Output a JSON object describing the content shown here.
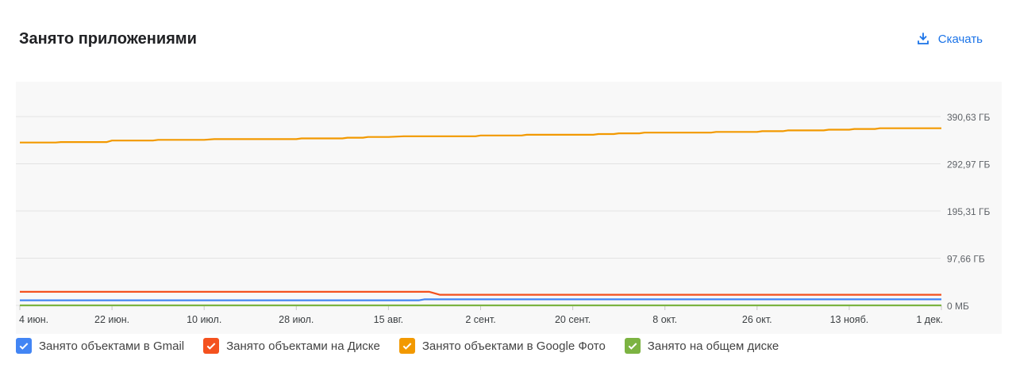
{
  "header": {
    "title": "Занято приложениями",
    "download_label": "Скачать",
    "download_icon": "download-icon"
  },
  "chart_data": {
    "type": "line",
    "title": "",
    "xlabel": "",
    "ylabel": "",
    "x_ticks": [
      "4 июн.",
      "22 июн.",
      "10 июл.",
      "28 июл.",
      "15 авг.",
      "2 сент.",
      "20 сент.",
      "8 окт.",
      "26 окт.",
      "13 нояб.",
      "1 дек."
    ],
    "y_ticks": [
      "390,63 ГБ",
      "292,97 ГБ",
      "195,31 ГБ",
      "97,66 ГБ",
      "0 МБ"
    ],
    "ylim_gb": [
      0,
      390.63
    ],
    "grid": true,
    "legend_position": "bottom",
    "series": [
      {
        "name": "Занято объектами в Gmail",
        "color": "#4285f4",
        "points": [
          [
            "4 июн.",
            10.5
          ],
          [
            "21 авг.",
            10.5
          ],
          [
            "22 авг.",
            12.5
          ],
          [
            "1 дек.",
            12.5
          ]
        ]
      },
      {
        "name": "Занято объектами на Диске",
        "color": "#f4511e",
        "points": [
          [
            "4 июн.",
            28
          ],
          [
            "23 авг.",
            28
          ],
          [
            "25 авг.",
            22
          ],
          [
            "1 дек.",
            22
          ]
        ]
      },
      {
        "name": "Занято объектами в Google Фото",
        "color": "#f29900",
        "points": [
          [
            "4 июн.",
            337
          ],
          [
            "11 июн.",
            337
          ],
          [
            "12 июн.",
            338
          ],
          [
            "21 июн.",
            338
          ],
          [
            "22 июн.",
            341
          ],
          [
            "30 июн.",
            341
          ],
          [
            "1 июл.",
            342.5
          ],
          [
            "10 июл.",
            342.5
          ],
          [
            "12 июл.",
            344
          ],
          [
            "28 июл.",
            344
          ],
          [
            "29 июл.",
            345.5
          ],
          [
            "6 авг.",
            345.5
          ],
          [
            "7 авг.",
            347
          ],
          [
            "10 авг.",
            347
          ],
          [
            "11 авг.",
            348.5
          ],
          [
            "15 авг.",
            348.5
          ],
          [
            "18 авг.",
            350
          ],
          [
            "1 сент.",
            350
          ],
          [
            "2 сент.",
            351.5
          ],
          [
            "10 сент.",
            351.5
          ],
          [
            "11 сент.",
            353
          ],
          [
            "24 сент.",
            353
          ],
          [
            "25 сент.",
            354.5
          ],
          [
            "28 сент.",
            354.5
          ],
          [
            "29 сент.",
            356
          ],
          [
            "3 окт.",
            356
          ],
          [
            "4 окт.",
            357.5
          ],
          [
            "17 окт.",
            357.5
          ],
          [
            "18 окт.",
            359
          ],
          [
            "26 окт.",
            359
          ],
          [
            "27 окт.",
            360.5
          ],
          [
            "31 окт.",
            360.5
          ],
          [
            "1 нояб.",
            362
          ],
          [
            "8 нояб.",
            362
          ],
          [
            "9 нояб.",
            363.5
          ],
          [
            "13 нояб.",
            363.5
          ],
          [
            "14 нояб.",
            365
          ],
          [
            "18 нояб.",
            365
          ],
          [
            "19 нояб.",
            366.5
          ],
          [
            "1 дек.",
            366.5
          ]
        ]
      },
      {
        "name": "Занято на общем диске",
        "color": "#7cb342",
        "points": [
          [
            "4 июн.",
            0
          ],
          [
            "1 дек.",
            0
          ]
        ]
      }
    ]
  }
}
